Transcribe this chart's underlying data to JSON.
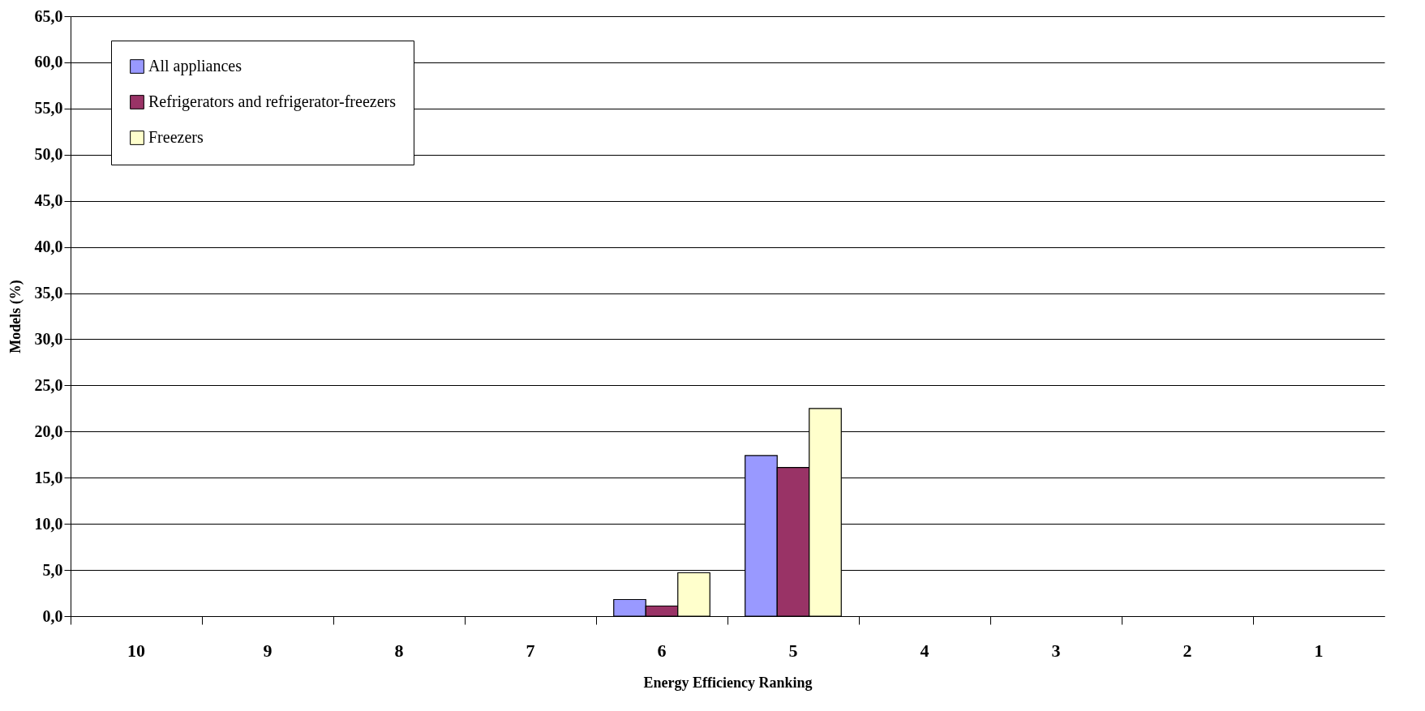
{
  "chart_data": {
    "type": "bar",
    "xlabel": "Energy Efficiency Ranking",
    "ylabel": "Models (%)",
    "categories": [
      "10",
      "9",
      "8",
      "7",
      "6",
      "5",
      "4",
      "3",
      "2",
      "1"
    ],
    "series": [
      {
        "name": "All appliances",
        "color": "#9999ff",
        "values": [
          null,
          null,
          null,
          null,
          1.8,
          17.4,
          null,
          null,
          null,
          null
        ]
      },
      {
        "name": "Refrigerators and refrigerator-freezers",
        "color": "#993366",
        "values": [
          null,
          null,
          null,
          null,
          1.1,
          16.1,
          null,
          null,
          null,
          null
        ]
      },
      {
        "name": "Freezers",
        "color": "#ffffcc",
        "values": [
          null,
          null,
          null,
          null,
          4.7,
          22.5,
          null,
          null,
          null,
          null
        ]
      }
    ],
    "ylim": [
      0,
      65
    ],
    "yticks": [
      {
        "value": 0,
        "label": "0,0"
      },
      {
        "value": 5,
        "label": "5,0"
      },
      {
        "value": 10,
        "label": "10,0"
      },
      {
        "value": 15,
        "label": "15,0"
      },
      {
        "value": 20,
        "label": "20,0"
      },
      {
        "value": 25,
        "label": "25,0"
      },
      {
        "value": 30,
        "label": "30,0"
      },
      {
        "value": 35,
        "label": "35,0"
      },
      {
        "value": 40,
        "label": "40,0"
      },
      {
        "value": 45,
        "label": "45,0"
      },
      {
        "value": 50,
        "label": "50,0"
      },
      {
        "value": 55,
        "label": "55,0"
      },
      {
        "value": 60,
        "label": "60,0"
      },
      {
        "value": 65,
        "label": "65,0"
      }
    ],
    "grid": "y",
    "legend": "top left"
  }
}
